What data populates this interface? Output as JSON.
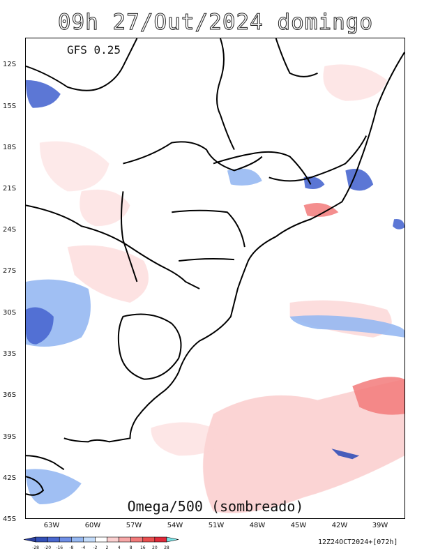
{
  "title": "09h 27/Out/2024 domingo",
  "model": "GFS 0.25",
  "field": "Omega/500 (sombreado)",
  "run": "12Z24OCT2024+[072h]",
  "lat_labels": [
    "12S",
    "15S",
    "18S",
    "21S",
    "24S",
    "27S",
    "30S",
    "33S",
    "36S",
    "39S",
    "42S",
    "45S"
  ],
  "lon_labels": [
    "63W",
    "60W",
    "57W",
    "54W",
    "51W",
    "48W",
    "45W",
    "42W",
    "39W"
  ],
  "colorbar": {
    "labels": [
      "-28",
      "-20",
      "-16",
      "-8",
      "-4",
      "-2",
      "2",
      "4",
      "8",
      "16",
      "20",
      "28"
    ],
    "colors": [
      "#2b3f9e",
      "#3350b8",
      "#4a68d0",
      "#6f8fe6",
      "#96b8f2",
      "#c4dcfa",
      "#ffffff",
      "#fbd0d0",
      "#f7a7a7",
      "#f27a7a",
      "#ea4f4f",
      "#e02a3a",
      "#7be3e6"
    ]
  }
}
